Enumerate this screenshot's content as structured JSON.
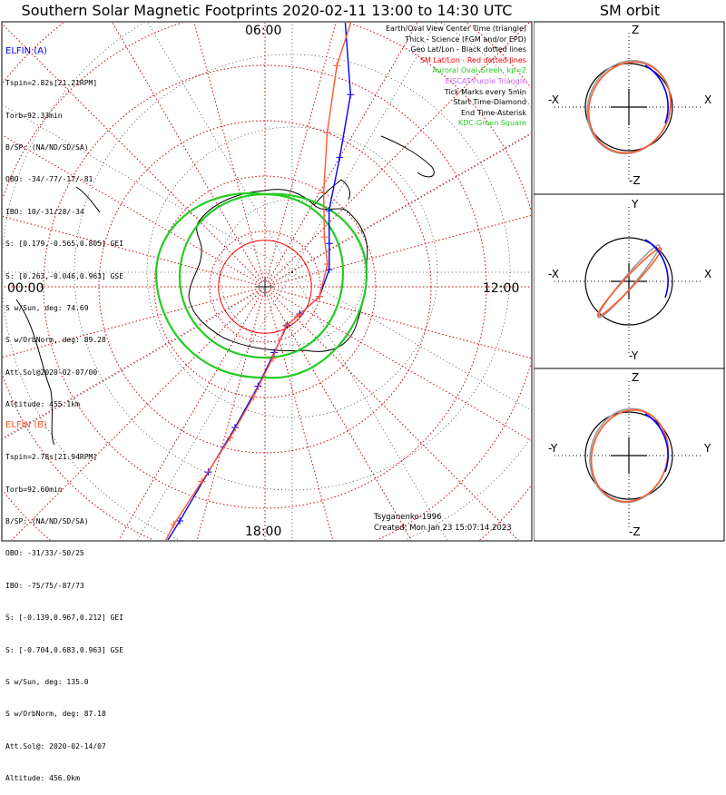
{
  "header": {
    "title": "Southern Solar Magnetic Footprints 2020-02-11 13:00 to 14:30 UTC",
    "sm_title": "SM orbit"
  },
  "colors": {
    "elfin_a": "#0000ff",
    "elfin_b": "#ff5a2d",
    "oval": "#22cc22",
    "sm_latlon": "#ff0000",
    "geo": "#000000",
    "grid": "#cc0000"
  },
  "elfin_a": {
    "name": "ELFIN (A)",
    "lines": [
      "Tspin=2.82s[21.21RPM]",
      "Torb=92.33min",
      "B/SP: (NA/ND/SD/SA)",
      "OBO: -34/-77/-17/-81",
      "IBO: 10/-31/28/-34",
      "S: [0.179,-0.565,0.805] GEI",
      "S: [0.263,-0.046,0.963] GSE",
      "S w/Sun, deg: 74.69",
      "S w/OrbNorm, deg: 89.28",
      "Att.Sol@2020-02-07/00",
      "Altitude: 455.1km"
    ]
  },
  "elfin_b": {
    "name": "ELFIN (B)",
    "lines": [
      "Tspin=2.78s[21.94RPM]",
      "Torb=92.60min",
      "B/SP: (NA/ND/SD/SA)",
      "OBO: -31/33/-50/25",
      "IBO: -75/75/-87/73",
      "S: [-0.139,0.967,0.212] GEI",
      "S: [-0.704,0.683,0.963] GSE",
      "S w/Sun, deg: 135.0",
      "S w/OrbNorm, deg: 87.18",
      "Att.Sol@: 2020-02-14/07",
      "Altitude: 456.0km"
    ]
  },
  "legend": [
    {
      "text": "Earth/Oval View Center Time (triangle)",
      "color": "#000000"
    },
    {
      "text": "Thick - Science (FGM and/or EPD)",
      "color": "#000000"
    },
    {
      "text": "Geo Lat/Lon - Black dotted lines",
      "color": "#000000"
    },
    {
      "text": "SM Lat/Lon - Red dotted lines",
      "color": "#ff0000"
    },
    {
      "text": "Auroral Oval-Green, kp=2",
      "color": "#22cc22"
    },
    {
      "text": "EISCAT-Purple Triangle",
      "color": "#cc66ff"
    },
    {
      "text": "Tick Marks every 5min",
      "color": "#000000"
    },
    {
      "text": "Start Time-Diamond",
      "color": "#000000"
    },
    {
      "text": "End Time-Asterisk",
      "color": "#000000"
    },
    {
      "text": "KDC-Green Square",
      "color": "#22cc22"
    }
  ],
  "footer": {
    "model": "Tsyganenko-1996",
    "created": "Created: Mon Jan 23 15:07:14 2023"
  },
  "chart_data": [
    {
      "type": "polar-map",
      "title": "Southern Solar Magnetic Footprints 2020-02-11 13:00 to 14:30 UTC",
      "mlt_labels": [
        "06:00",
        "12:00",
        "18:00",
        "00:00"
      ],
      "sm_lat_rings_deg": [
        -90,
        -80,
        -70,
        -60,
        -50,
        -40,
        -30,
        -20,
        -10,
        0
      ],
      "series": [
        {
          "name": "ELFIN (A)",
          "color": "#0000ff",
          "points": [
            [
              -20,
              -55
            ],
            [
              -38,
              -74
            ],
            [
              -52,
              -66
            ],
            [
              -63,
              -60
            ],
            [
              -72,
              -50
            ],
            [
              -76,
              -34
            ],
            [
              -78,
              -15
            ],
            [
              -80,
              10
            ],
            [
              -82,
              38
            ],
            [
              -82,
              60
            ],
            [
              -78,
              82
            ],
            [
              -72,
              94
            ],
            [
              -64,
              102
            ],
            [
              -55,
              107
            ],
            [
              -45,
              110
            ],
            [
              -36,
              112
            ]
          ]
        },
        {
          "name": "ELFIN (B)",
          "color": "#ff5a2d",
          "points": [
            [
              -18,
              -54
            ],
            [
              -35,
              -72
            ],
            [
              -48,
              -72
            ],
            [
              -60,
              -68
            ],
            [
              -70,
              -58
            ],
            [
              -76,
              -40
            ],
            [
              -78,
              -20
            ],
            [
              -80,
              10
            ],
            [
              -82,
              40
            ],
            [
              -82,
              62
            ],
            [
              -77,
              84
            ],
            [
              -70,
              96
            ],
            [
              -62,
              103
            ],
            [
              -53,
              108
            ],
            [
              -44,
              111
            ],
            [
              -34,
              112
            ]
          ]
        }
      ],
      "auroral_oval_kp": 2
    },
    {
      "type": "scatter",
      "title": "SM orbit",
      "panels": [
        {
          "xlabel_left": "-X",
          "xlabel_right": "X",
          "ylabel_top": "Z",
          "ylabel_bottom": "-Z"
        },
        {
          "xlabel_left": "-X",
          "xlabel_right": "X",
          "ylabel_top": "Y",
          "ylabel_bottom": "-Y"
        },
        {
          "xlabel_left": "-Y",
          "xlabel_right": "Y",
          "ylabel_top": "Z",
          "ylabel_bottom": "-Z"
        }
      ]
    }
  ]
}
